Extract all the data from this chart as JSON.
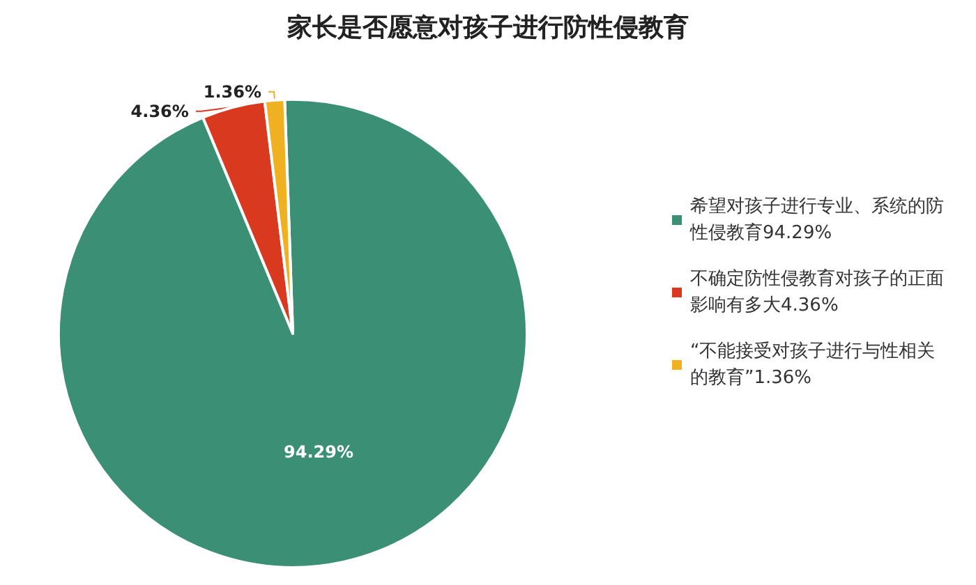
{
  "chart_data": {
    "type": "pie",
    "title": "家长是否愿意对孩子进行防性侵教育",
    "categories": [
      "希望对孩子进行专业、系统的防性侵教育",
      "不确定防性侵教育对孩子的正面影响有多大",
      "“不能接受对孩子进行与性相关的教育”"
    ],
    "values": [
      94.29,
      4.36,
      1.36
    ],
    "value_labels": [
      "94.29%",
      "4.36%",
      "1.36%"
    ],
    "colors": [
      "#3a8f74",
      "#d8391f",
      "#efb122"
    ],
    "legend": "right"
  }
}
